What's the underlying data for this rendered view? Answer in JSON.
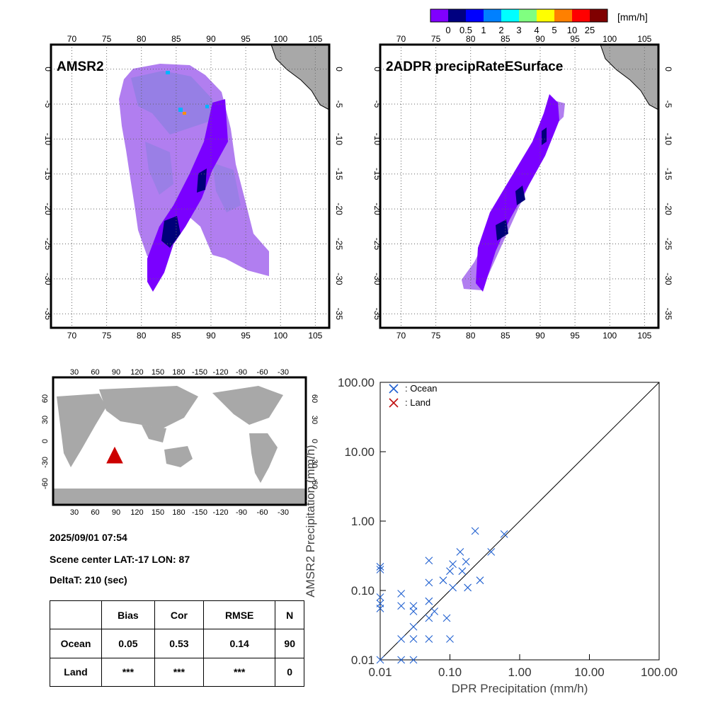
{
  "colorbar": {
    "unit": "[mm/h]",
    "colors": [
      "#8000ff",
      "#000080",
      "#0000ff",
      "#0080ff",
      "#00ffff",
      "#80ff80",
      "#ffff00",
      "#ff8000",
      "#ff0000",
      "#800000"
    ],
    "labels": [
      "0",
      "0.5",
      "1",
      "2",
      "3",
      "4",
      "5",
      "10",
      "25"
    ]
  },
  "map_top": {
    "lon_ticks": [
      "70",
      "75",
      "80",
      "85",
      "90",
      "95",
      "100",
      "105"
    ],
    "lat_ticks": [
      "0",
      "-5",
      "-10",
      "-15",
      "-20",
      "-25",
      "-30",
      "-35"
    ]
  },
  "panels": {
    "amsr2_title": "AMSR2",
    "dpr_title": "2ADPR precipRateESurface"
  },
  "world_map": {
    "lon_ticks": [
      "30",
      "60",
      "90",
      "120",
      "150",
      "180",
      "-150",
      "-120",
      "-90",
      "-60",
      "-30"
    ],
    "lat_ticks": [
      "60",
      "30",
      "0",
      "-30",
      "-60"
    ],
    "marker_color": "#cc0000"
  },
  "info": {
    "datetime": "2025/09/01 07:54",
    "scene_center": "Scene center LAT:-17   LON:  87",
    "delta_t": "DeltaT:  210 (sec)"
  },
  "stats": {
    "headers": [
      "Bias",
      "Cor",
      "RMSE",
      "N"
    ],
    "rows": [
      {
        "label": "Ocean",
        "values": [
          "0.05",
          "0.53",
          "0.14",
          "90"
        ]
      },
      {
        "label": "Land",
        "values": [
          "***",
          "***",
          "***",
          "0"
        ]
      }
    ]
  },
  "chart_data": {
    "type": "scatter",
    "xlabel": "DPR Precipitation (mm/h)",
    "ylabel": "AMSR2 Precipitation (mm/h)",
    "xscale": "log",
    "yscale": "log",
    "xlim": [
      0.01,
      100
    ],
    "ylim": [
      0.01,
      100
    ],
    "x_tick_labels": [
      "0.01",
      "0.10",
      "1.00",
      "10.00",
      "100.00"
    ],
    "y_tick_labels": [
      "0.01",
      "0.10",
      "1.00",
      "10.00",
      "100.00"
    ],
    "legend_position": "top-left",
    "series": [
      {
        "name": ": Ocean",
        "color": "#2060d0",
        "points": [
          [
            0.01,
            0.22
          ],
          [
            0.01,
            0.2
          ],
          [
            0.01,
            0.08
          ],
          [
            0.01,
            0.065
          ],
          [
            0.01,
            0.055
          ],
          [
            0.01,
            0.01
          ],
          [
            0.02,
            0.09
          ],
          [
            0.02,
            0.06
          ],
          [
            0.02,
            0.02
          ],
          [
            0.02,
            0.01
          ],
          [
            0.03,
            0.06
          ],
          [
            0.03,
            0.05
          ],
          [
            0.03,
            0.03
          ],
          [
            0.03,
            0.02
          ],
          [
            0.03,
            0.01
          ],
          [
            0.05,
            0.27
          ],
          [
            0.05,
            0.13
          ],
          [
            0.05,
            0.07
          ],
          [
            0.05,
            0.04
          ],
          [
            0.05,
            0.02
          ],
          [
            0.06,
            0.05
          ],
          [
            0.08,
            0.14
          ],
          [
            0.09,
            0.04
          ],
          [
            0.1,
            0.19
          ],
          [
            0.1,
            0.02
          ],
          [
            0.11,
            0.24
          ],
          [
            0.11,
            0.11
          ],
          [
            0.14,
            0.36
          ],
          [
            0.15,
            0.19
          ],
          [
            0.17,
            0.26
          ],
          [
            0.18,
            0.11
          ],
          [
            0.23,
            0.72
          ],
          [
            0.27,
            0.14
          ],
          [
            0.39,
            0.36
          ],
          [
            0.6,
            0.65
          ]
        ]
      },
      {
        "name": ": Land",
        "color": "#c01010",
        "points": []
      }
    ]
  }
}
